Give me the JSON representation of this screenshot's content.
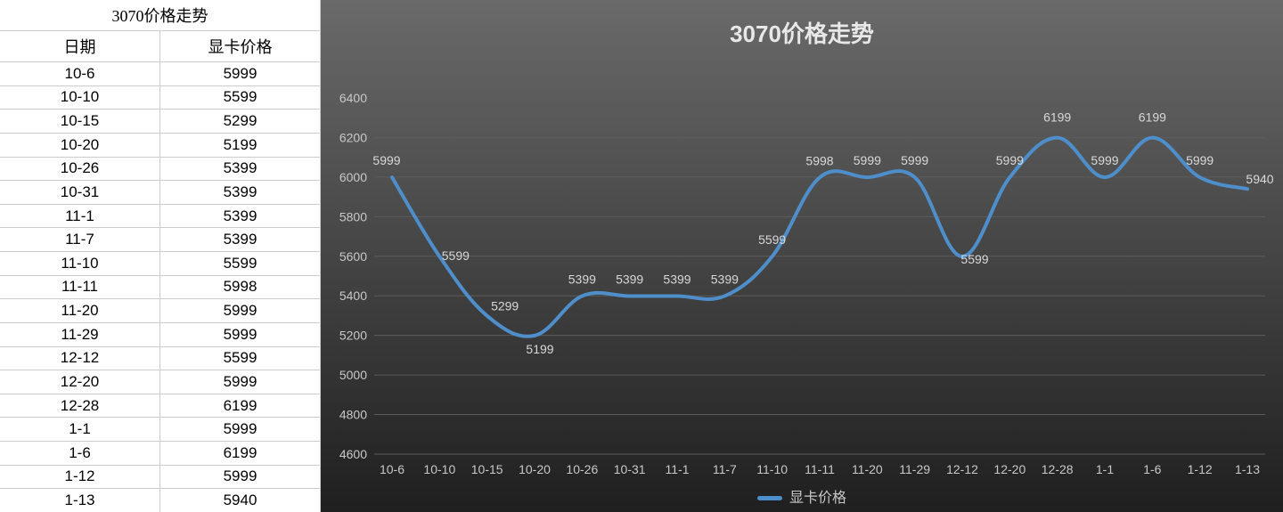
{
  "table": {
    "title": "3070价格走势",
    "columns": [
      "日期",
      "显卡价格"
    ],
    "rows": [
      [
        "10-6",
        5999
      ],
      [
        "10-10",
        5599
      ],
      [
        "10-15",
        5299
      ],
      [
        "10-20",
        5199
      ],
      [
        "10-26",
        5399
      ],
      [
        "10-31",
        5399
      ],
      [
        "11-1",
        5399
      ],
      [
        "11-7",
        5399
      ],
      [
        "11-10",
        5599
      ],
      [
        "11-11",
        5998
      ],
      [
        "11-20",
        5999
      ],
      [
        "11-29",
        5999
      ],
      [
        "12-12",
        5599
      ],
      [
        "12-20",
        5999
      ],
      [
        "12-28",
        6199
      ],
      [
        "1-1",
        5999
      ],
      [
        "1-6",
        6199
      ],
      [
        "1-12",
        5999
      ],
      [
        "1-13",
        5940
      ]
    ]
  },
  "chart": {
    "title": "3070价格走势",
    "type": "line",
    "series_name": "显卡价格",
    "x_labels": [
      "10-6",
      "10-10",
      "10-15",
      "10-20",
      "10-26",
      "10-31",
      "11-1",
      "11-7",
      "11-10",
      "11-11",
      "11-20",
      "11-29",
      "12-12",
      "12-20",
      "12-28",
      "1-1",
      "1-6",
      "1-12",
      "1-13"
    ],
    "y_values": [
      5999,
      5599,
      5299,
      5199,
      5399,
      5399,
      5399,
      5399,
      5599,
      5998,
      5999,
      5999,
      5599,
      5999,
      6199,
      5999,
      6199,
      5999,
      5940
    ],
    "y_axis": {
      "min": 4600,
      "max": 6400,
      "step": 200
    },
    "line_color": "#4e8ecb",
    "line_width": 4,
    "grid_color": "#5c5c5c",
    "axis_text_color": "#c8c8c8",
    "data_label_color": "#d8d8d8",
    "title_color": "#e8e8e8",
    "bg_gradient_top": "#6a6a6a",
    "bg_gradient_bottom": "#1f1f1f",
    "tick_fontsize": 14,
    "data_label_fontsize": 14,
    "title_fontsize": 26,
    "smooth": true,
    "data_label_offsets": {
      "0": [
        -6,
        -14
      ],
      "1": [
        18,
        4
      ],
      "2": [
        20,
        -6
      ],
      "3": [
        6,
        20
      ],
      "4": [
        0,
        -14
      ],
      "5": [
        0,
        -14
      ],
      "6": [
        0,
        -14
      ],
      "7": [
        0,
        -14
      ],
      "8": [
        0,
        -14
      ],
      "9": [
        0,
        -14
      ],
      "10": [
        0,
        -14
      ],
      "11": [
        0,
        -14
      ],
      "12": [
        14,
        8
      ],
      "13": [
        0,
        -14
      ],
      "14": [
        0,
        -18
      ],
      "15": [
        0,
        -14
      ],
      "16": [
        0,
        -18
      ],
      "17": [
        0,
        -14
      ],
      "18": [
        14,
        -6
      ]
    }
  }
}
